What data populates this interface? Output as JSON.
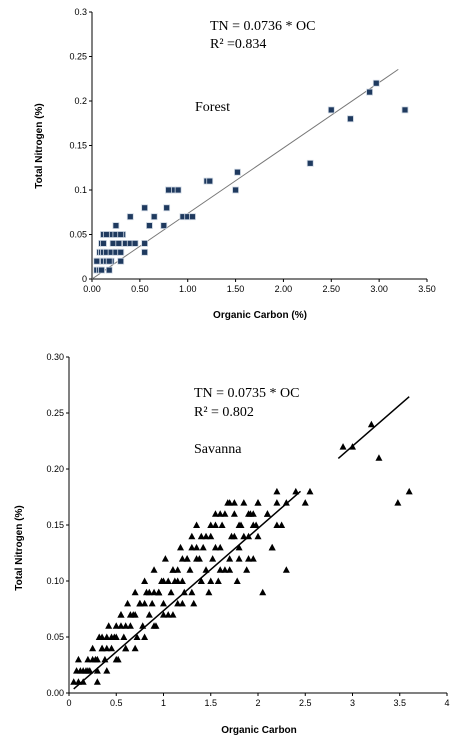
{
  "chart_data": [
    {
      "type": "scatter",
      "xlabel": "Organic Carbon (%)",
      "ylabel": "Total Nitrogen (%)",
      "xlim": [
        0,
        3.5
      ],
      "ylim": [
        0,
        0.3
      ],
      "xticks": [
        "0.00",
        "0.50",
        "1.00",
        "1.50",
        "2.00",
        "2.50",
        "3.00",
        "3.50"
      ],
      "yticks": [
        "0",
        "0.05",
        "0.1",
        "0.15",
        "0.2",
        "0.25",
        "0.3"
      ],
      "equation": "TN = 0.0736 * OC",
      "r2_label": "R² =0.834",
      "site_label": "Forest",
      "marker": "square",
      "marker_color": "#1f3a5f",
      "trendline": {
        "slope": 0.0736,
        "x_range": [
          0,
          3.2
        ]
      },
      "series": [
        {
          "x": [
            0.05,
            0.06,
            0.08,
            0.1,
            0.12,
            0.15,
            0.18,
            0.2,
            0.08,
            0.1,
            0.12,
            0.15,
            0.2,
            0.25,
            0.1,
            0.15,
            0.2,
            0.25,
            0.3,
            0.32,
            0.12,
            0.15,
            0.25,
            0.3,
            0.35,
            0.22,
            0.28,
            0.3,
            0.35,
            0.4,
            0.45,
            0.25,
            0.3,
            0.4,
            0.55,
            0.55,
            0.6,
            0.65,
            0.75,
            0.55,
            0.78,
            0.8,
            0.85,
            0.95,
            1.0,
            1.05,
            0.8,
            0.9,
            1.2,
            1.23,
            1.5,
            1.52,
            2.28,
            2.5,
            2.7,
            2.9,
            2.97,
            3.27,
            0.1,
            0.12,
            0.18,
            0.05,
            0.3
          ],
          "y": [
            0.01,
            0.02,
            0.01,
            0.02,
            0.02,
            0.02,
            0.01,
            0.02,
            0.03,
            0.03,
            0.03,
            0.03,
            0.03,
            0.03,
            0.04,
            0.05,
            0.05,
            0.05,
            0.04,
            0.05,
            0.05,
            0.05,
            0.06,
            0.05,
            0.04,
            0.04,
            0.04,
            0.03,
            0.04,
            0.04,
            0.04,
            0.03,
            0.03,
            0.07,
            0.04,
            0.03,
            0.06,
            0.07,
            0.06,
            0.08,
            0.08,
            0.1,
            0.1,
            0.07,
            0.07,
            0.07,
            0.1,
            0.1,
            0.11,
            0.11,
            0.1,
            0.12,
            0.13,
            0.19,
            0.18,
            0.21,
            0.22,
            0.19,
            0.01,
            0.04,
            0.02,
            0.02,
            0.02
          ]
        }
      ]
    },
    {
      "type": "scatter",
      "xlabel": "Organic Carbon",
      "ylabel": "Total Nitrogen (%)",
      "xlim": [
        0,
        4
      ],
      "ylim": [
        0,
        0.3
      ],
      "xticks": [
        "0",
        "0.5",
        "1",
        "1.5",
        "2",
        "2.5",
        "3",
        "3.5",
        "4"
      ],
      "yticks": [
        "0.00",
        "0.05",
        "0.10",
        "0.15",
        "0.20",
        "0.25",
        "0.30"
      ],
      "equation": "TN = 0.0735 * OC",
      "r2_label": "R² = 0.802",
      "site_label": "Savanna",
      "marker": "triangle",
      "marker_color": "#000000",
      "trendline": {
        "slope": 0.0735,
        "x_range": [
          0.05,
          2.45
        ],
        "segment2_x_range": [
          2.85,
          3.6
        ]
      },
      "series": [
        {
          "x": [
            0.05,
            0.08,
            0.1,
            0.12,
            0.15,
            0.18,
            0.2,
            0.22,
            0.25,
            0.28,
            0.3,
            0.32,
            0.35,
            0.38,
            0.4,
            0.42,
            0.45,
            0.48,
            0.5,
            0.52,
            0.55,
            0.58,
            0.6,
            0.62,
            0.65,
            0.68,
            0.7,
            0.72,
            0.75,
            0.78,
            0.8,
            0.82,
            0.85,
            0.88,
            0.9,
            0.92,
            0.95,
            0.98,
            1.0,
            1.02,
            1.05,
            1.08,
            1.1,
            1.12,
            1.15,
            1.18,
            1.2,
            1.22,
            1.25,
            1.28,
            1.3,
            1.32,
            1.35,
            1.38,
            1.4,
            1.42,
            1.45,
            1.48,
            1.5,
            1.52,
            1.55,
            1.58,
            1.6,
            1.62,
            1.65,
            1.68,
            1.7,
            1.72,
            1.75,
            1.78,
            1.8,
            1.82,
            1.85,
            1.88,
            1.9,
            1.92,
            1.95,
            1.98,
            2.0,
            2.05,
            2.1,
            2.15,
            2.2,
            2.25,
            2.3,
            0.1,
            0.15,
            0.2,
            0.25,
            0.3,
            0.35,
            0.4,
            0.45,
            0.5,
            0.55,
            0.6,
            0.65,
            0.7,
            0.75,
            0.8,
            0.85,
            0.9,
            0.95,
            1.0,
            1.05,
            1.1,
            1.15,
            1.2,
            1.25,
            1.3,
            1.35,
            1.4,
            1.45,
            1.5,
            1.55,
            1.6,
            1.65,
            1.7,
            1.75,
            1.8,
            1.85,
            1.9,
            1.95,
            2.0,
            2.1,
            2.2,
            2.3,
            2.4,
            2.5,
            2.55,
            2.9,
            3.0,
            3.2,
            3.28,
            3.48,
            3.6,
            0.3,
            0.5,
            0.7,
            0.9,
            1.1,
            1.3,
            1.5,
            1.7,
            1.9,
            2.15,
            0.4,
            0.6,
            0.8,
            1.0,
            1.2,
            1.4,
            1.6,
            1.8,
            2.0,
            2.2,
            0.35,
            0.55,
            0.75,
            0.95,
            1.15,
            1.35,
            1.55,
            1.75,
            1.95
          ],
          "y": [
            0.01,
            0.02,
            0.03,
            0.02,
            0.01,
            0.02,
            0.03,
            0.02,
            0.04,
            0.03,
            0.02,
            0.05,
            0.04,
            0.03,
            0.05,
            0.06,
            0.04,
            0.05,
            0.06,
            0.03,
            0.07,
            0.05,
            0.04,
            0.08,
            0.06,
            0.07,
            0.09,
            0.05,
            0.08,
            0.06,
            0.1,
            0.09,
            0.07,
            0.08,
            0.11,
            0.06,
            0.09,
            0.1,
            0.08,
            0.12,
            0.07,
            0.09,
            0.11,
            0.1,
            0.08,
            0.13,
            0.1,
            0.09,
            0.12,
            0.11,
            0.14,
            0.08,
            0.15,
            0.12,
            0.1,
            0.13,
            0.11,
            0.09,
            0.14,
            0.12,
            0.16,
            0.1,
            0.13,
            0.15,
            0.11,
            0.17,
            0.12,
            0.14,
            0.16,
            0.1,
            0.13,
            0.15,
            0.17,
            0.11,
            0.14,
            0.16,
            0.12,
            0.15,
            0.17,
            0.09,
            0.16,
            0.13,
            0.17,
            0.15,
            0.11,
            0.01,
            0.02,
            0.02,
            0.03,
            0.03,
            0.04,
            0.04,
            0.05,
            0.05,
            0.06,
            0.06,
            0.07,
            0.07,
            0.08,
            0.08,
            0.09,
            0.09,
            0.09,
            0.1,
            0.1,
            0.11,
            0.11,
            0.12,
            0.12,
            0.13,
            0.13,
            0.14,
            0.14,
            0.15,
            0.15,
            0.16,
            0.16,
            0.17,
            0.17,
            0.15,
            0.14,
            0.16,
            0.15,
            0.17,
            0.16,
            0.18,
            0.17,
            0.18,
            0.17,
            0.18,
            0.22,
            0.22,
            0.24,
            0.21,
            0.17,
            0.18,
            0.01,
            0.03,
            0.04,
            0.06,
            0.07,
            0.09,
            0.1,
            0.11,
            0.12,
            0.13,
            0.02,
            0.04,
            0.05,
            0.07,
            0.08,
            0.1,
            0.11,
            0.12,
            0.14,
            0.15,
            0.05,
            0.07,
            0.08,
            0.09,
            0.1,
            0.12,
            0.13,
            0.14,
            0.16
          ]
        }
      ]
    }
  ]
}
